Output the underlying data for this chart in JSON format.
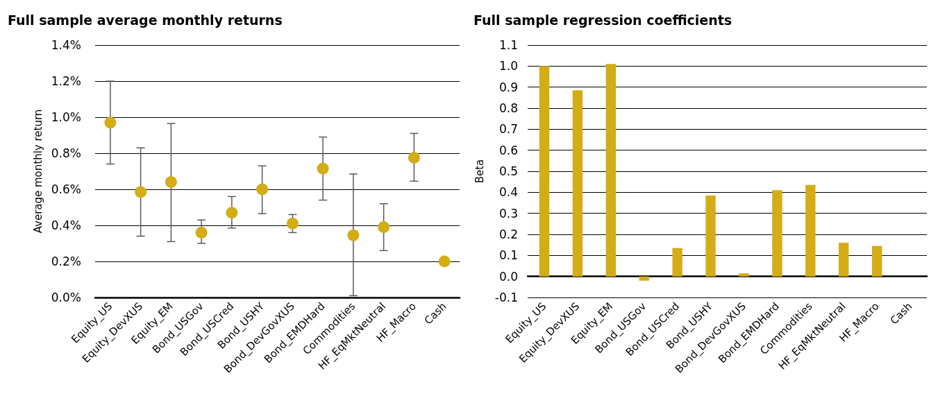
{
  "chart_data": [
    {
      "type": "scatter",
      "title": "Full sample average monthly returns",
      "ylabel": "Average monthly return",
      "categories": [
        "Equity_US",
        "Equity_DevXUS",
        "Equity_EM",
        "Bond_USGov",
        "Bond_USCred",
        "Bond_USHY",
        "Bond_DevGovXUS",
        "Bond_EMDHard",
        "Commodities",
        "HF_EqMktNeutral",
        "HF_Macro",
        "Cash"
      ],
      "series": [
        {
          "color": "#d4ac16",
          "values": [
            0.97,
            0.585,
            0.64,
            0.36,
            0.47,
            0.6,
            0.41,
            0.715,
            0.345,
            0.39,
            0.775,
            0.2
          ],
          "errors": [
            [
              0.74,
              1.2
            ],
            [
              0.34,
              0.83
            ],
            [
              0.31,
              0.965
            ],
            [
              0.3,
              0.43
            ],
            [
              0.385,
              0.56
            ],
            [
              0.465,
              0.73
            ],
            [
              0.36,
              0.46
            ],
            [
              0.54,
              0.89
            ],
            [
              0.01,
              0.685
            ],
            [
              0.26,
              0.52
            ],
            [
              0.645,
              0.91
            ],
            null
          ]
        }
      ],
      "marker": "circle",
      "ylim": [
        0,
        1.4
      ],
      "yticks": [
        {
          "value": 0,
          "label": "0.0%"
        },
        {
          "value": 0.2,
          "label": "0.2%"
        },
        {
          "value": 0.4,
          "label": "0.4%"
        },
        {
          "value": 0.6,
          "label": "0.6%"
        },
        {
          "value": 0.8,
          "label": "0.8%"
        },
        {
          "value": 1.0,
          "label": "1.0%"
        },
        {
          "value": 1.2,
          "label": "1.2%"
        },
        {
          "value": 1.4,
          "label": "1.4%"
        }
      ],
      "grid": "y"
    },
    {
      "type": "bar",
      "title": "Full sample regression coefficients",
      "ylabel": "Beta",
      "categories": [
        "Equity_US",
        "Equity_DevXUS",
        "Equity_EM",
        "Bond_USGov",
        "Bond_USCred",
        "Bond_USHY",
        "Bond_DevGovXUS",
        "Bond_EMDHard",
        "Commodities",
        "HF_EqMktNeutral",
        "HF_Macro",
        "Cash"
      ],
      "series": [
        {
          "color": "#d4ac16",
          "values": [
            1.0,
            0.885,
            1.01,
            -0.02,
            0.135,
            0.385,
            0.015,
            0.41,
            0.435,
            0.16,
            0.145,
            0
          ]
        }
      ],
      "ylim": [
        -0.1,
        1.1
      ],
      "yticks": [
        {
          "value": -0.1,
          "label": "-0.1"
        },
        {
          "value": 0,
          "label": "0.0"
        },
        {
          "value": 0.1,
          "label": "0.1"
        },
        {
          "value": 0.2,
          "label": "0.2"
        },
        {
          "value": 0.3,
          "label": "0.3"
        },
        {
          "value": 0.4,
          "label": "0.4"
        },
        {
          "value": 0.5,
          "label": "0.5"
        },
        {
          "value": 0.6,
          "label": "0.6"
        },
        {
          "value": 0.7,
          "label": "0.7"
        },
        {
          "value": 0.8,
          "label": "0.8"
        },
        {
          "value": 0.9,
          "label": "0.9"
        },
        {
          "value": 1.0,
          "label": "1.0"
        },
        {
          "value": 1.1,
          "label": "1.1"
        }
      ],
      "grid": "y"
    }
  ]
}
